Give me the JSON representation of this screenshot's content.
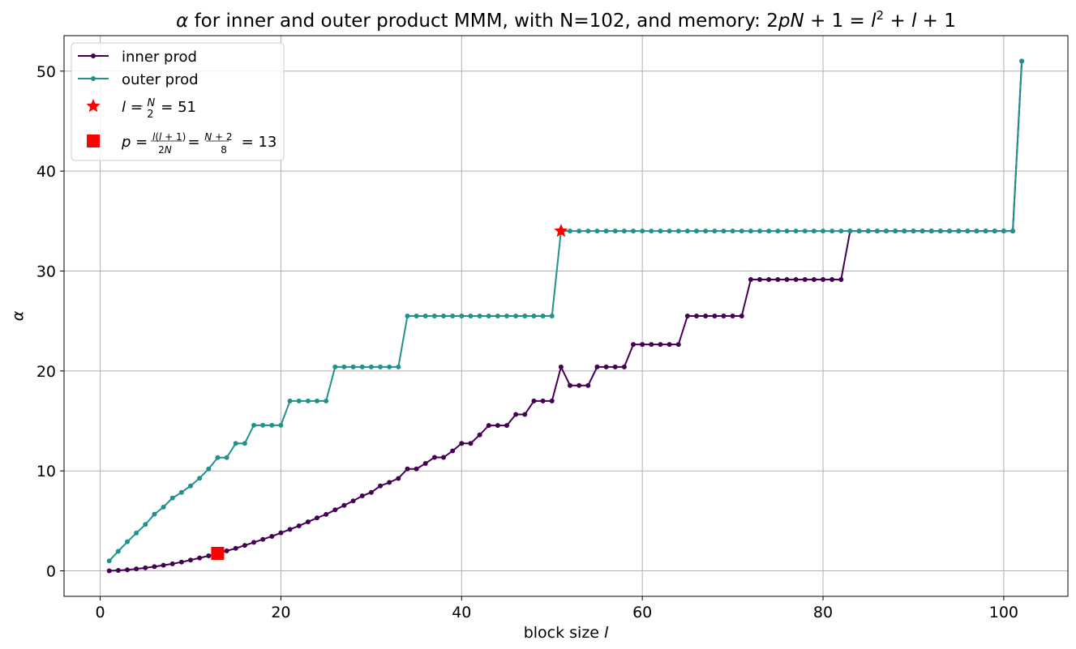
{
  "chart_data": {
    "type": "line",
    "title": "α for inner and outer product MMM, with N=102, and memory: 2pN + 1 = l² + l + 1",
    "xlabel": "block size l",
    "ylabel": "α",
    "xlim": [
      -4,
      107.1
    ],
    "ylim": [
      -2.55,
      53.55
    ],
    "xticks": [
      0,
      20,
      40,
      60,
      80,
      100
    ],
    "yticks": [
      0,
      10,
      20,
      30,
      40,
      50
    ],
    "grid": true,
    "legend_position": "top-left",
    "series": [
      {
        "name": "inner prod",
        "color": "#440154",
        "x": [
          1,
          2,
          3,
          4,
          5,
          6,
          7,
          8,
          9,
          10,
          11,
          12,
          13,
          14,
          15,
          16,
          17,
          18,
          19,
          20,
          21,
          22,
          23,
          24,
          25,
          26,
          27,
          28,
          29,
          30,
          31,
          32,
          33,
          34,
          35,
          36,
          37,
          38,
          39,
          40,
          41,
          42,
          43,
          44,
          45,
          46,
          47,
          48,
          49,
          50,
          51,
          52,
          53,
          54,
          55,
          56,
          57,
          58,
          59,
          60,
          61,
          62,
          63,
          64,
          65,
          66,
          67,
          68,
          69,
          70,
          71,
          72,
          73,
          74,
          75,
          76,
          77,
          78,
          79,
          80,
          81,
          82,
          83,
          84,
          85,
          86,
          87,
          88,
          89,
          90,
          91,
          92,
          93,
          94,
          95,
          96,
          97,
          98,
          99,
          100,
          101,
          102
        ],
        "y": [
          0,
          0.04,
          0.1,
          0.2,
          0.3,
          0.42,
          0.56,
          0.7,
          0.88,
          1.08,
          1.29,
          1.5,
          1.75,
          2,
          2.25,
          2.55,
          2.85,
          3.15,
          3.45,
          3.8,
          4.15,
          4.5,
          4.9,
          5.3,
          5.65,
          6.1,
          6.55,
          7,
          7.5,
          7.85,
          8.5,
          8.85,
          9.25,
          10.2,
          10.2,
          10.75,
          11.35,
          11.35,
          12,
          12.75,
          12.75,
          13.6,
          14.55,
          14.55,
          14.55,
          15.65,
          15.65,
          17,
          17,
          17,
          20.4,
          18.55,
          18.55,
          18.55,
          20.4,
          20.4,
          20.4,
          20.4,
          22.65,
          22.65,
          22.65,
          22.65,
          22.65,
          22.65,
          25.5,
          25.5,
          25.5,
          25.5,
          25.5,
          25.5,
          25.5,
          29.15,
          29.15,
          29.15,
          29.15,
          29.15,
          29.15,
          29.15,
          29.15,
          29.15,
          29.15,
          29.15,
          34,
          34,
          34,
          34,
          34,
          34,
          34,
          34,
          34,
          34,
          34,
          34,
          34,
          34,
          34,
          34,
          34,
          34,
          34,
          51
        ]
      },
      {
        "name": "outer prod",
        "color": "#21918c",
        "x": [
          1,
          2,
          3,
          4,
          5,
          6,
          7,
          8,
          9,
          10,
          11,
          12,
          13,
          14,
          15,
          16,
          17,
          18,
          19,
          20,
          21,
          22,
          23,
          24,
          25,
          26,
          27,
          28,
          29,
          30,
          31,
          32,
          33,
          34,
          35,
          36,
          37,
          38,
          39,
          40,
          41,
          42,
          43,
          44,
          45,
          46,
          47,
          48,
          49,
          50,
          51,
          52,
          53,
          54,
          55,
          56,
          57,
          58,
          59,
          60,
          61,
          62,
          63,
          64,
          65,
          66,
          67,
          68,
          69,
          70,
          71,
          72,
          73,
          74,
          75,
          76,
          77,
          78,
          79,
          80,
          81,
          82,
          83,
          84,
          85,
          86,
          87,
          88,
          89,
          90,
          91,
          92,
          93,
          94,
          95,
          96,
          97,
          98,
          99,
          100,
          101,
          102
        ],
        "y": [
          1,
          1.96,
          2.91,
          3.78,
          4.64,
          5.67,
          6.38,
          7.29,
          7.85,
          8.5,
          9.27,
          10.2,
          11.33,
          11.33,
          12.75,
          12.75,
          14.57,
          14.57,
          14.57,
          14.57,
          17,
          17,
          17,
          17,
          17,
          20.4,
          20.4,
          20.4,
          20.4,
          20.4,
          20.4,
          20.4,
          20.4,
          25.5,
          25.5,
          25.5,
          25.5,
          25.5,
          25.5,
          25.5,
          25.5,
          25.5,
          25.5,
          25.5,
          25.5,
          25.5,
          25.5,
          25.5,
          25.5,
          25.5,
          34,
          34,
          34,
          34,
          34,
          34,
          34,
          34,
          34,
          34,
          34,
          34,
          34,
          34,
          34,
          34,
          34,
          34,
          34,
          34,
          34,
          34,
          34,
          34,
          34,
          34,
          34,
          34,
          34,
          34,
          34,
          34,
          34,
          34,
          34,
          34,
          34,
          34,
          34,
          34,
          34,
          34,
          34,
          34,
          34,
          34,
          34,
          34,
          34,
          34,
          34,
          51
        ]
      }
    ],
    "markers": [
      {
        "name": "l = N/2 = 51",
        "shape": "star",
        "color": "#ff0000",
        "x": 51,
        "y": 34
      },
      {
        "name": "p = l(l+1)/2N = (N+2)/8 = 13",
        "shape": "square",
        "color": "#ff0000",
        "x": 13,
        "y": 1.75
      }
    ]
  }
}
